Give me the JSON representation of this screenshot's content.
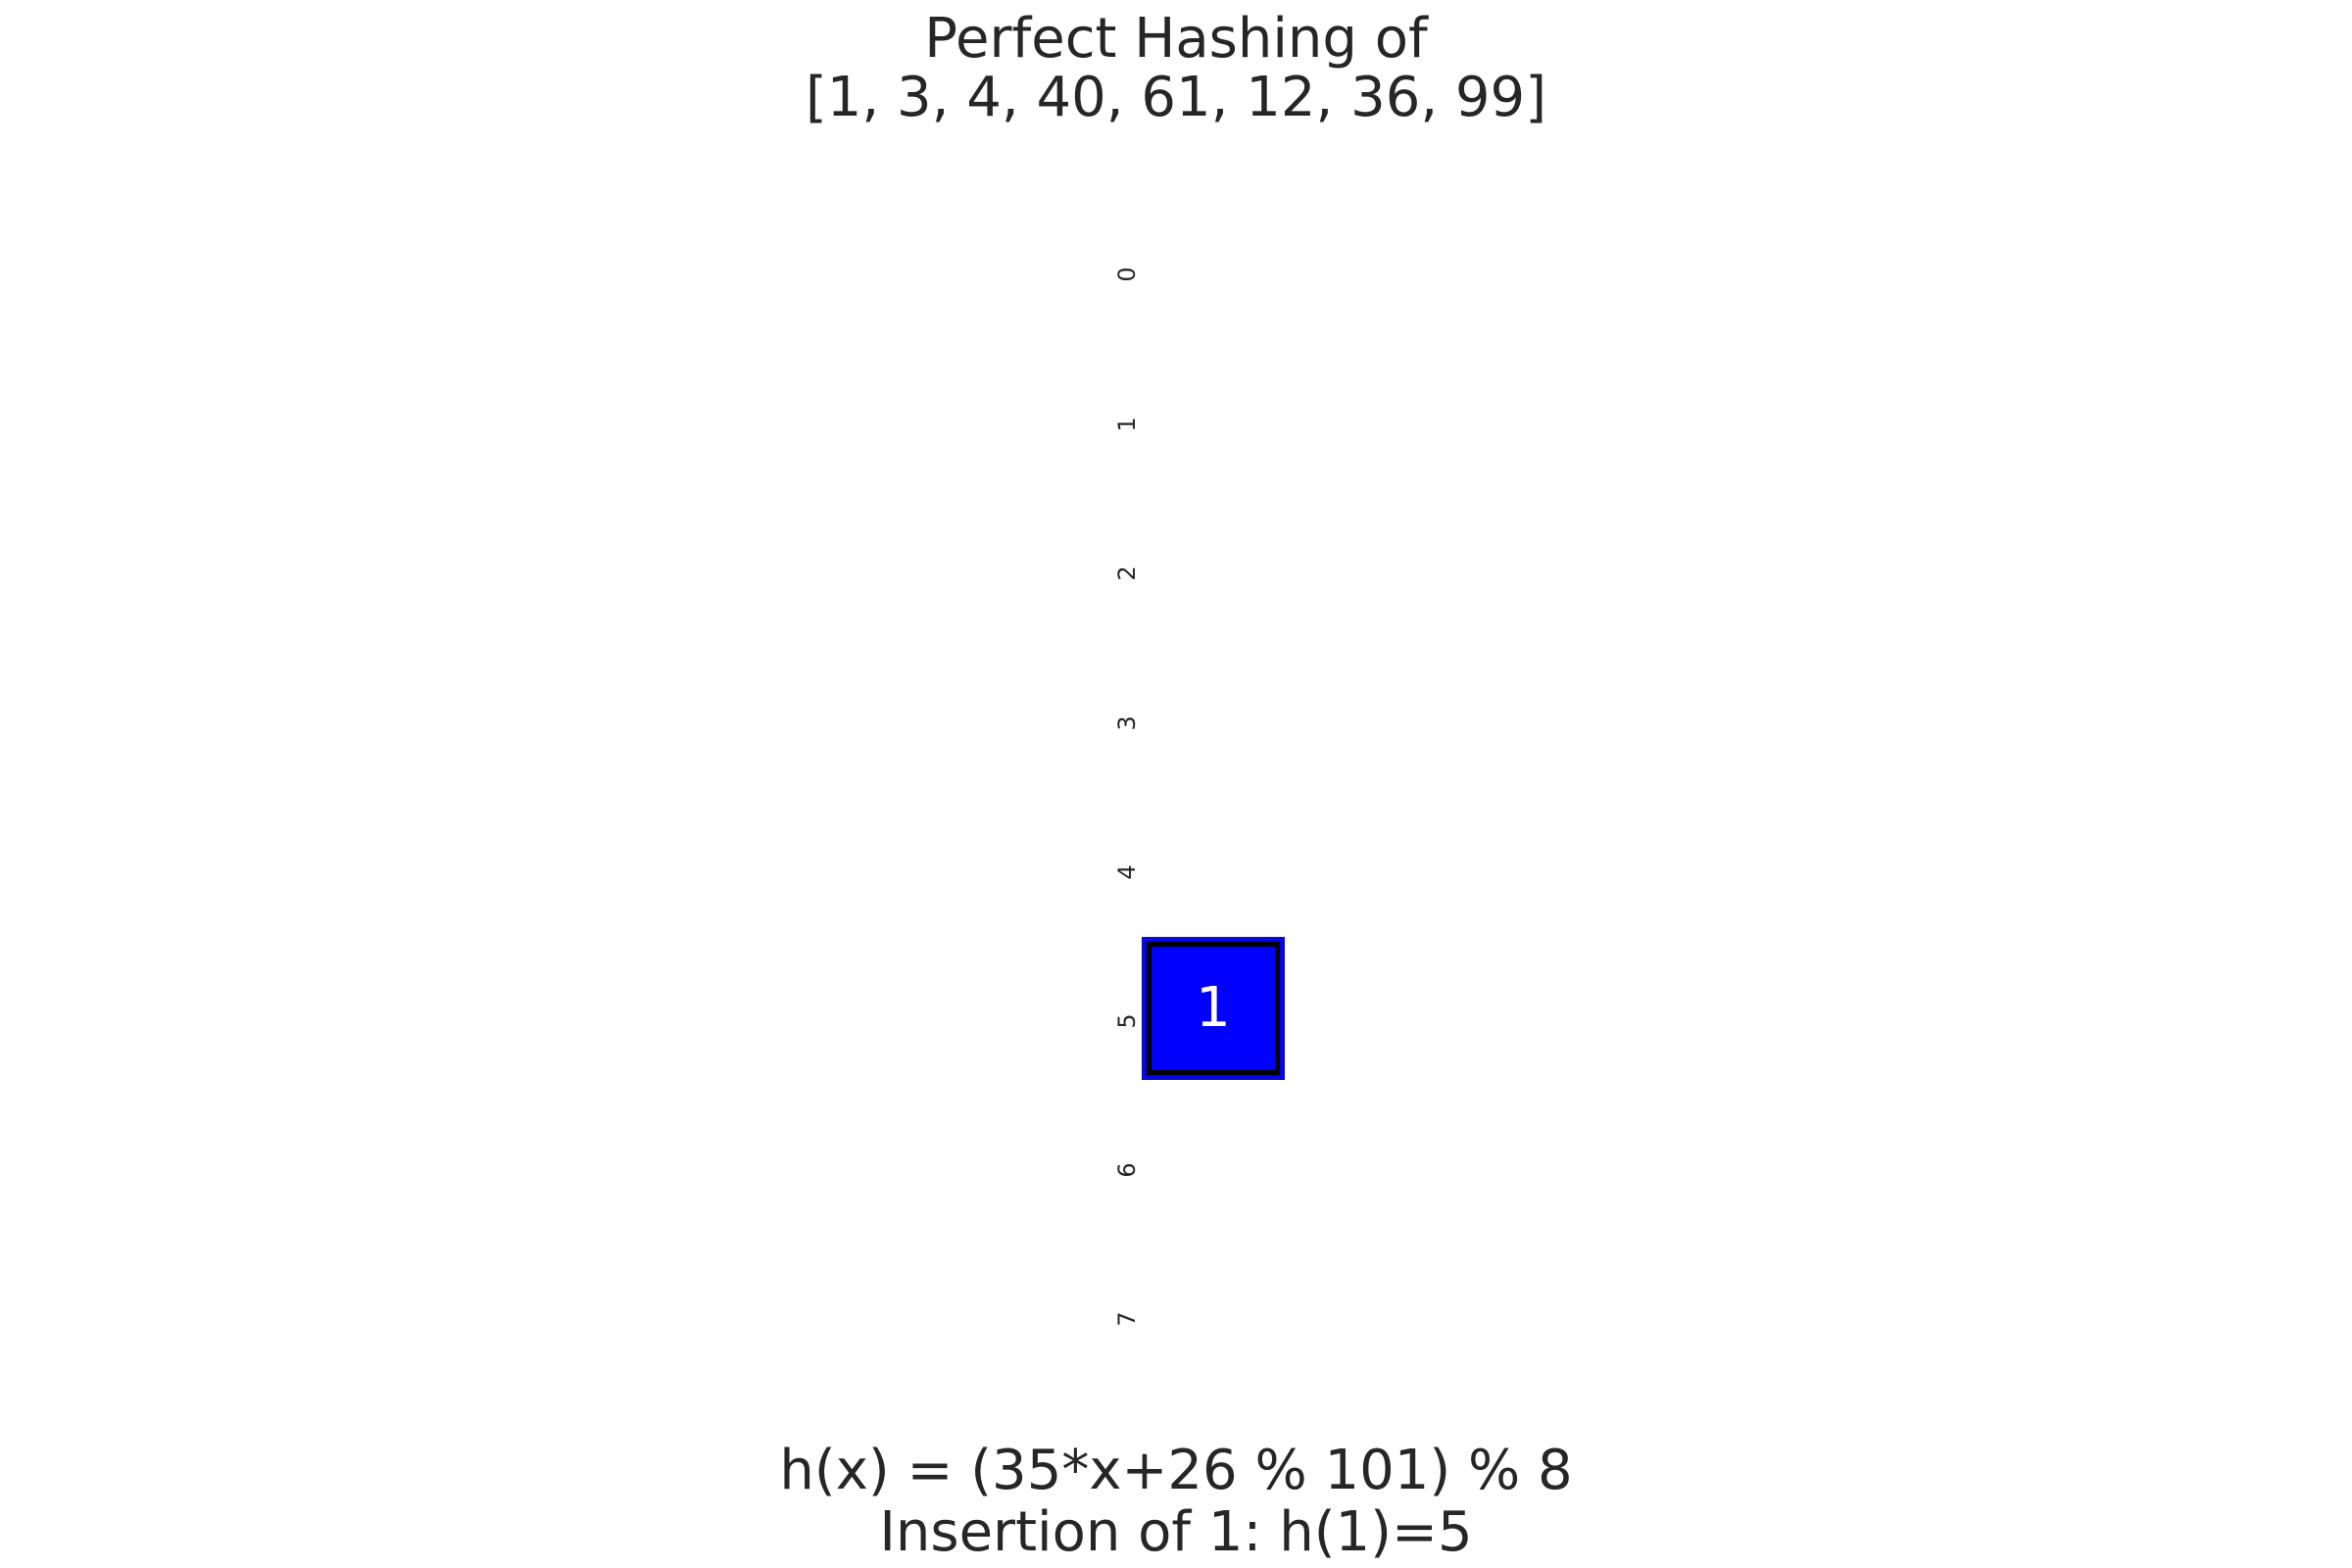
{
  "title": {
    "line1": "Perfect Hashing of",
    "line2": "[1, 3, 4, 40, 61, 12, 36, 99]"
  },
  "table": {
    "slots": [
      "0",
      "1",
      "2",
      "3",
      "4",
      "5",
      "6",
      "7"
    ],
    "filled": [
      {
        "slot": 5,
        "value": "1",
        "fill": "#0000ff",
        "text_color": "#ffffff"
      }
    ]
  },
  "caption": {
    "line1": "h(x) = (35*x+26 % 101) % 8",
    "line2": "Insertion of 1: h(1)=5"
  }
}
